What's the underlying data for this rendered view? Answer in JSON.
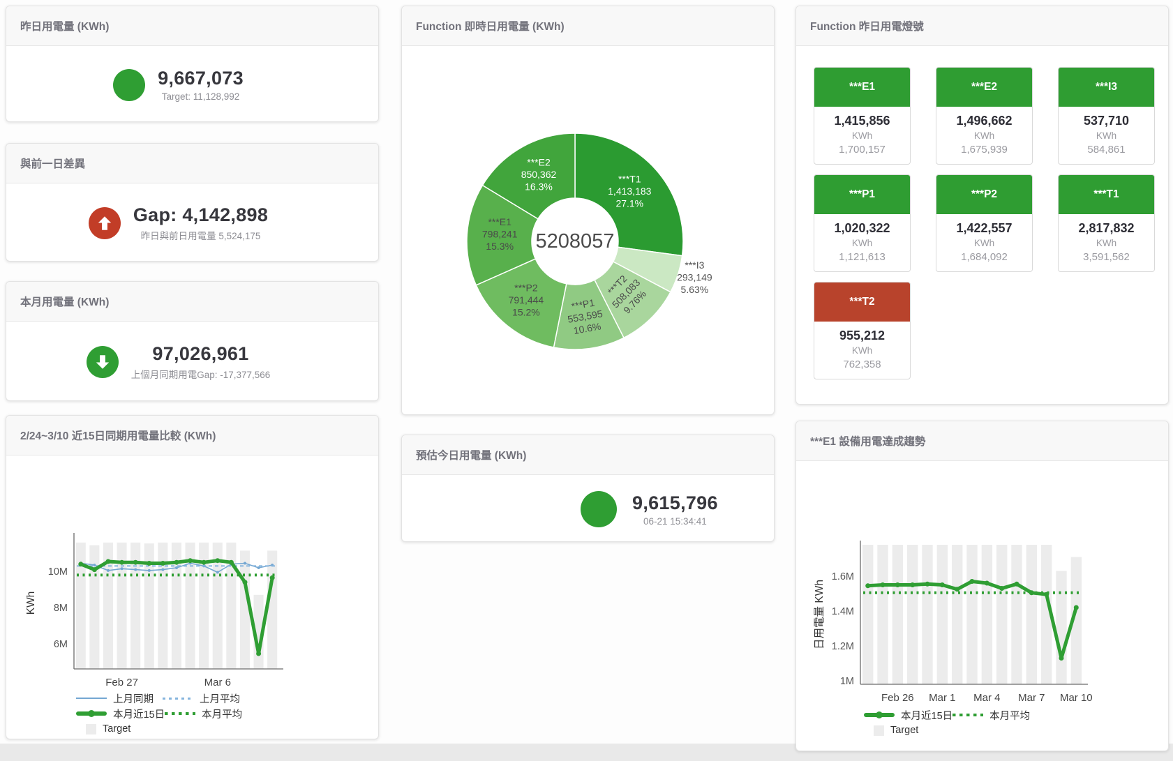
{
  "colors": {
    "green": "#2f9e33",
    "red": "#c23d27",
    "tile_green": "#2f9d32",
    "tile_red": "#b8432c",
    "blue_line": "#74a7d2",
    "blue_dash": "#85b4dd",
    "target_bar": "#ececec"
  },
  "stat_cards": [
    {
      "title": "昨日用電量 (KWh)",
      "icon": "circle",
      "status": "green",
      "value": "9,667,073",
      "subtitle": "Target: 11,128,992"
    },
    {
      "title": "與前一日差異",
      "icon": "arrow-up",
      "status": "red",
      "value": "Gap: 4,142,898",
      "subtitle": "昨日與前日用電量 5,524,175"
    },
    {
      "title": "本月用電量 (KWh)",
      "icon": "arrow-down",
      "status": "green",
      "value": "97,026,961",
      "subtitle": "上個月同期用電Gap: -17,377,566"
    },
    {
      "title": "預估今日用電量 (KWh)",
      "icon": "circle",
      "status": "green",
      "value": "9,615,796",
      "subtitle": "06-21 15:34:41"
    }
  ],
  "lights_card": {
    "title": "Function 昨日用電燈號",
    "unit_label": "KWh",
    "tiles": [
      {
        "name": "***E1",
        "value": "1,415,856",
        "target": "1,700,157",
        "status": "green"
      },
      {
        "name": "***E2",
        "value": "1,496,662",
        "target": "1,675,939",
        "status": "green"
      },
      {
        "name": "***I3",
        "value": "537,710",
        "target": "584,861",
        "status": "green"
      },
      {
        "name": "***P1",
        "value": "1,020,322",
        "target": "1,121,613",
        "status": "green"
      },
      {
        "name": "***P2",
        "value": "1,422,557",
        "target": "1,684,092",
        "status": "green"
      },
      {
        "name": "***T1",
        "value": "2,817,832",
        "target": "3,591,562",
        "status": "green"
      },
      {
        "name": "***T2",
        "value": "955,212",
        "target": "762,358",
        "status": "red"
      }
    ]
  },
  "chart_data": [
    {
      "id": "donut",
      "type": "pie",
      "title": "Function 即時日用電量 (KWh)",
      "center_label": "5208057",
      "slices": [
        {
          "name": "***T1",
          "value": 1413183,
          "display": "1,413,183",
          "pct": 27.1,
          "pct_label": "27.1%",
          "color": "#2b9b31",
          "label_color": "#ffffff"
        },
        {
          "name": "***I3",
          "value": 293149,
          "display": "293,149",
          "pct": 5.63,
          "pct_label": "5.63%",
          "color": "#cbe8c3",
          "label_color": "#555555",
          "outside": true
        },
        {
          "name": "***T2",
          "value": 508083,
          "display": "508,083",
          "pct": 9.76,
          "pct_label": "9.76%",
          "color": "#a9d69d",
          "label_color": "#4a4a4a"
        },
        {
          "name": "***P1",
          "value": 553595,
          "display": "553,595",
          "pct": 10.6,
          "pct_label": "10.6%",
          "color": "#90ca83",
          "label_color": "#4a4a4a"
        },
        {
          "name": "***P2",
          "value": 791444,
          "display": "791,444",
          "pct": 15.2,
          "pct_label": "15.2%",
          "color": "#6fbc60",
          "label_color": "#4a4a4a"
        },
        {
          "name": "***E1",
          "value": 798241,
          "display": "798,241",
          "pct": 15.3,
          "pct_label": "15.3%",
          "color": "#58b04c",
          "label_color": "#4a4a4a"
        },
        {
          "name": "***E2",
          "value": 850362,
          "display": "850,362",
          "pct": 16.3,
          "pct_label": "16.3%",
          "color": "#41a53c",
          "label_color": "#ffffff"
        }
      ]
    },
    {
      "id": "compare",
      "type": "line",
      "title": "2/24~3/10 近15日同期用電量比較 (KWh)",
      "ylabel": "KWh",
      "unit": "M KWh",
      "ylim": [
        4.6,
        11.9
      ],
      "yticks": [
        {
          "value": 6,
          "label": "6M"
        },
        {
          "value": 8,
          "label": "8M"
        },
        {
          "value": 10,
          "label": "10M"
        }
      ],
      "categories": [
        "2/24",
        "2/25",
        "2/26",
        "2/27",
        "2/28",
        "3/1",
        "3/2",
        "3/3",
        "3/4",
        "3/5",
        "3/6",
        "3/7",
        "3/8",
        "3/9",
        "3/10"
      ],
      "xticks": [
        {
          "index": 3,
          "label": "Feb 27"
        },
        {
          "index": 10,
          "label": "Mar 6"
        }
      ],
      "series": [
        {
          "name": "Target",
          "type": "bar",
          "color": "#ececec",
          "values": [
            11.6,
            11.45,
            11.6,
            11.6,
            11.6,
            11.55,
            11.6,
            11.6,
            11.6,
            11.6,
            11.6,
            11.6,
            11.15,
            8.7,
            11.15
          ]
        },
        {
          "name": "上月同期",
          "type": "line",
          "color": "#74a7d2",
          "width": 1.6,
          "values": [
            10.45,
            10.35,
            10.05,
            10.15,
            10.1,
            10.05,
            10.1,
            10.2,
            10.45,
            10.3,
            9.95,
            10.4,
            10.45,
            10.2,
            10.35
          ]
        },
        {
          "name": "上月平均",
          "type": "dashline",
          "color": "#85b4dd",
          "width": 2,
          "value": 10.3
        },
        {
          "name": "本月近15日",
          "type": "line",
          "color": "#2f9e33",
          "width": 5,
          "values": [
            10.4,
            10.1,
            10.55,
            10.5,
            10.5,
            10.45,
            10.45,
            10.5,
            10.6,
            10.5,
            10.6,
            10.5,
            9.4,
            5.45,
            9.65
          ]
        },
        {
          "name": "本月平均",
          "type": "dotline",
          "color": "#2f9e33",
          "width": 4,
          "value": 9.8
        }
      ],
      "legend_rows": [
        [
          {
            "name": "上月同期",
            "swatch": "blue-line"
          },
          {
            "name": "上月平均",
            "swatch": "blue-dash"
          }
        ],
        [
          {
            "name": "本月近15日",
            "swatch": "green-line"
          },
          {
            "name": "本月平均",
            "swatch": "green-dot"
          }
        ],
        [
          {
            "name": "Target",
            "swatch": "gray-box"
          }
        ]
      ]
    },
    {
      "id": "trend",
      "type": "line",
      "title": "***E1 設備用電達成趨勢",
      "ylabel": "日用電量 KWh",
      "unit": "M KWh",
      "ylim": [
        0.98,
        1.78
      ],
      "yticks": [
        {
          "value": 1,
          "label": "1M"
        },
        {
          "value": 1.2,
          "label": "1.2M"
        },
        {
          "value": 1.4,
          "label": "1.4M"
        },
        {
          "value": 1.6,
          "label": "1.6M"
        }
      ],
      "categories": [
        "2/24",
        "2/25",
        "2/26",
        "2/27",
        "2/28",
        "3/1",
        "3/2",
        "3/3",
        "3/4",
        "3/5",
        "3/6",
        "3/7",
        "3/8",
        "3/9",
        "3/10"
      ],
      "xticks": [
        {
          "index": 2,
          "label": "Feb 26"
        },
        {
          "index": 5,
          "label": "Mar 1"
        },
        {
          "index": 8,
          "label": "Mar 4"
        },
        {
          "index": 11,
          "label": "Mar 7"
        },
        {
          "index": 14,
          "label": "Mar 10"
        }
      ],
      "series": [
        {
          "name": "Target",
          "type": "bar",
          "color": "#ececec",
          "values": [
            1.78,
            1.78,
            1.78,
            1.78,
            1.78,
            1.78,
            1.78,
            1.78,
            1.78,
            1.78,
            1.78,
            1.78,
            1.78,
            1.63,
            1.71
          ]
        },
        {
          "name": "本月近15日",
          "type": "line",
          "color": "#2f9e33",
          "width": 5,
          "values": [
            1.545,
            1.55,
            1.55,
            1.55,
            1.555,
            1.55,
            1.525,
            1.57,
            1.56,
            1.53,
            1.555,
            1.505,
            1.495,
            1.13,
            1.42
          ]
        },
        {
          "name": "本月平均",
          "type": "dotline",
          "color": "#2f9e33",
          "width": 4,
          "value": 1.505
        }
      ],
      "legend_rows": [
        [
          {
            "name": "本月近15日",
            "swatch": "green-line"
          },
          {
            "name": "本月平均",
            "swatch": "green-dot"
          }
        ],
        [
          {
            "name": "Target",
            "swatch": "gray-box"
          }
        ]
      ]
    }
  ]
}
